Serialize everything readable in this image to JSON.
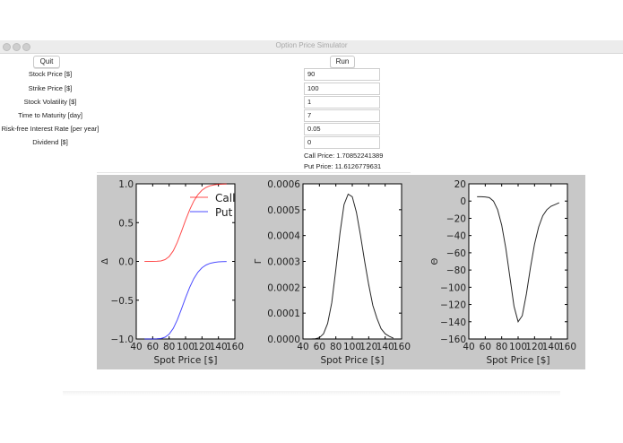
{
  "window": {
    "title": "Option Price Simulator"
  },
  "buttons": {
    "quit": "Quit",
    "run": "Run"
  },
  "fields": [
    {
      "label": "Stock Price [$]",
      "value": "90"
    },
    {
      "label": "Strike Price [$]",
      "value": "100"
    },
    {
      "label": "Stock Volatility [$]",
      "value": "1"
    },
    {
      "label": "Time to Maturity [day]",
      "value": "7"
    },
    {
      "label": "Risk-free Interest Rate [per year]",
      "value": "0.05"
    },
    {
      "label": "Dividend [$]",
      "value": "0"
    }
  ],
  "results": {
    "call": "Call Price: 1.70852241389",
    "put": "Put Price: 11.6126779631"
  },
  "chart_data": [
    {
      "type": "line",
      "xlabel": "Spot Price [$]",
      "ylabel": "Δ",
      "xlim": [
        40,
        160
      ],
      "ylim": [
        -1.0,
        1.0
      ],
      "xticks": [
        "40",
        "60",
        "80",
        "100",
        "120",
        "140",
        "160"
      ],
      "yticks": [
        "−1.0",
        "−0.5",
        "0.0",
        "0.5",
        "1.0"
      ],
      "legend": "top-right",
      "x": [
        50,
        55,
        60,
        65,
        70,
        75,
        80,
        85,
        90,
        95,
        100,
        105,
        110,
        115,
        120,
        125,
        130,
        135,
        140,
        145,
        150
      ],
      "series": [
        {
          "name": "Call",
          "color": "#ff0000",
          "values": [
            0,
            0,
            0.0002,
            0.0012,
            0.0062,
            0.0227,
            0.0624,
            0.1363,
            0.2467,
            0.3844,
            0.5304,
            0.6657,
            0.7776,
            0.861,
            0.9182,
            0.9542,
            0.9756,
            0.9876,
            0.9939,
            0.9971,
            0.9987
          ]
        },
        {
          "name": "Put",
          "color": "#0000ff",
          "values": [
            -1,
            -1,
            -0.9998,
            -0.9988,
            -0.9938,
            -0.9773,
            -0.9376,
            -0.8637,
            -0.7533,
            -0.6156,
            -0.4696,
            -0.3343,
            -0.2224,
            -0.139,
            -0.0818,
            -0.0458,
            -0.0244,
            -0.0124,
            -0.0061,
            -0.0029,
            -0.0013
          ]
        }
      ]
    },
    {
      "type": "line",
      "xlabel": "Spot Price [$]",
      "ylabel": "Γ",
      "xlim": [
        40,
        160
      ],
      "ylim": [
        0,
        0.0006
      ],
      "xticks": [
        "40",
        "60",
        "80",
        "100",
        "120",
        "140",
        "160"
      ],
      "yticks": [
        "0.0000",
        "0.0001",
        "0.0002",
        "0.0003",
        "0.0004",
        "0.0005",
        "0.0006"
      ],
      "x": [
        50,
        55,
        60,
        65,
        70,
        75,
        80,
        85,
        90,
        95,
        100,
        105,
        110,
        115,
        120,
        125,
        130,
        135,
        140,
        145,
        150
      ],
      "series": [
        {
          "color": "#000000",
          "values": [
            0,
            1e-06,
            5e-06,
            2e-05,
            6e-05,
            0.00014,
            0.00027,
            0.00041,
            0.00052,
            0.00056,
            0.00055,
            0.00049,
            0.0004,
            0.0003,
            0.00021,
            0.00013,
            8e-05,
            4e-05,
            2e-05,
            1e-05,
            3e-06
          ]
        }
      ]
    },
    {
      "type": "line",
      "xlabel": "Spot Price [$]",
      "ylabel": "Θ",
      "xlim": [
        40,
        160
      ],
      "ylim": [
        -160,
        20
      ],
      "xticks": [
        "40",
        "60",
        "80",
        "100",
        "120",
        "140",
        "160"
      ],
      "yticks": [
        "−160",
        "−140",
        "−120",
        "−100",
        "−80",
        "−60",
        "−40",
        "−20",
        "0",
        "20"
      ],
      "x": [
        50,
        55,
        60,
        65,
        70,
        75,
        80,
        85,
        90,
        95,
        100,
        105,
        110,
        115,
        120,
        125,
        130,
        135,
        140,
        145,
        150
      ],
      "series": [
        {
          "color": "#000000",
          "values": [
            5,
            5,
            4.8,
            4,
            0,
            -10,
            -28,
            -55,
            -88,
            -122,
            -140,
            -133,
            -108,
            -77,
            -50,
            -30,
            -17,
            -10,
            -6,
            -4,
            -2
          ]
        }
      ]
    }
  ]
}
